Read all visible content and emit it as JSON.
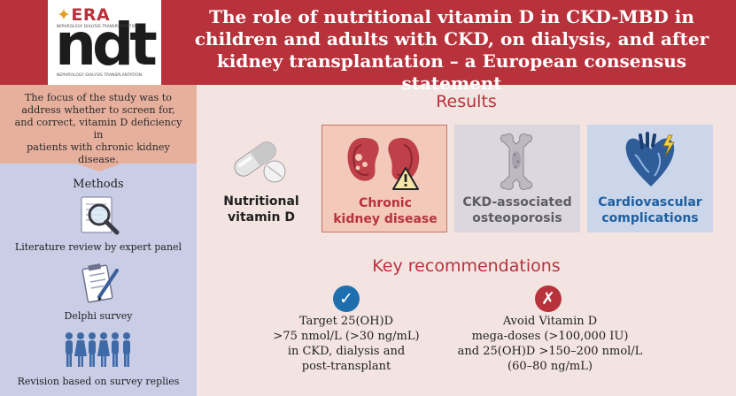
{
  "header": {
    "logo_era": "ERA",
    "logo_era_sub": "NEPHROLOGY DIALYSIS TRANSPLANTATION",
    "logo_ndt": "ndt",
    "logo_ndt_sub": "NEPHROLOGY DIALYSIS TRANSPLANTATION",
    "title_lines": [
      "The role of nutritional vitamin D in CKD-MBD in",
      "children and adults with CKD, on dialysis, and after",
      "kidney transplantation – a European consensus statement"
    ]
  },
  "left_panel": {
    "focus_lines": [
      "The focus of the study was to",
      "address whether to screen for,",
      "and correct, vitamin D deficiency in",
      "patients with chronic kidney",
      "disease."
    ],
    "methods_title": "Methods",
    "methods": [
      {
        "label": "Literature review by expert panel",
        "icon": "magnifier-document-icon"
      },
      {
        "label": "Delphi survey",
        "icon": "clipboard-pen-icon"
      },
      {
        "label": "Revision based on survey replies",
        "icon": "people-group-icon"
      }
    ]
  },
  "results": {
    "title": "Results",
    "items": [
      {
        "label_lines": [
          "Nutritional",
          "vitamin D"
        ],
        "icon": "vitamin-capsule-icon",
        "color": "#1f1f1f"
      },
      {
        "label_lines": [
          "Chronic",
          "kidney disease"
        ],
        "icon": "kidneys-warning-icon",
        "color": "#b8323c"
      },
      {
        "label_lines": [
          "CKD-associated",
          "osteoporosis"
        ],
        "icon": "bone-icon",
        "color": "#5c5c66"
      },
      {
        "label_lines": [
          "Cardiovascular",
          "complications"
        ],
        "icon": "heart-icon",
        "color": "#1f5fa0"
      }
    ]
  },
  "key_recommendations": {
    "title": "Key recommendations",
    "items": [
      {
        "icon": "check-icon",
        "symbol": "✓",
        "lines": [
          "Target 25(OH)D",
          ">75 nmol/L (>30 ng/mL)",
          "in CKD, dialysis and",
          "post-transplant"
        ]
      },
      {
        "icon": "x-icon",
        "symbol": "✗",
        "lines": [
          "Avoid Vitamin D",
          "mega-doses (>100,000 IU)",
          "and 25(OH)D >150–200 nmol/L",
          "(60–80 ng/mL)"
        ]
      }
    ]
  },
  "colors": {
    "header_red": "#b8323c",
    "left_peach": "#e7b09d",
    "left_lavender": "#c9cde6",
    "background": "#f3e4e2",
    "blue_accent": "#1f5fa0"
  }
}
